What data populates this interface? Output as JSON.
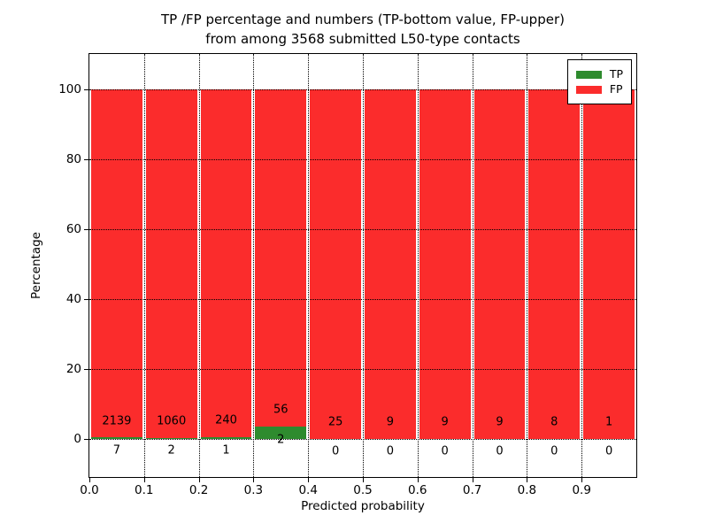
{
  "title": {
    "line1": "TP /FP percentage and numbers (TP-bottom value, FP-upper)",
    "line2": "from among 3568 submitted L50-type contacts"
  },
  "axes": {
    "xlabel": "Predicted probability",
    "ylabel": "Percentage"
  },
  "legend": {
    "items": [
      {
        "label": "TP",
        "color": "#2e8b2e"
      },
      {
        "label": "FP",
        "color": "#fb2c2c"
      }
    ]
  },
  "chart_data": {
    "type": "bar",
    "stacked": true,
    "normalized_to_percent_per_bin": true,
    "title": "TP /FP percentage and numbers (TP-bottom value, FP-upper) from among 3568 submitted L50-type contacts",
    "xlabel": "Predicted probability",
    "ylabel": "Percentage",
    "total_submitted_contacts": 3568,
    "bin_edges": [
      0.0,
      0.1,
      0.2,
      0.3,
      0.4,
      0.5,
      0.6,
      0.7,
      0.8,
      0.9,
      1.0
    ],
    "x_tick_labels": [
      "0.0",
      "0.1",
      "0.2",
      "0.3",
      "0.4",
      "0.5",
      "0.6",
      "0.7",
      "0.8",
      "0.9"
    ],
    "y_ticks": [
      0,
      20,
      40,
      60,
      80,
      100
    ],
    "y_tick_labels": [
      "0",
      "20",
      "40",
      "60",
      "80",
      "100"
    ],
    "xlim": [
      0,
      1
    ],
    "ylim": [
      -11,
      110
    ],
    "grid": "dotted both axes",
    "legend_position": "upper right",
    "series": [
      {
        "name": "TP",
        "color": "#2e8b2e",
        "counts": [
          7,
          2,
          1,
          2,
          0,
          0,
          0,
          0,
          0,
          0
        ],
        "percent": [
          0.33,
          0.19,
          0.41,
          3.45,
          0,
          0,
          0,
          0,
          0,
          0
        ]
      },
      {
        "name": "FP",
        "color": "#fb2c2c",
        "counts": [
          2139,
          1060,
          240,
          56,
          25,
          9,
          9,
          9,
          8,
          1
        ],
        "percent": [
          99.67,
          99.81,
          99.59,
          96.55,
          100,
          100,
          100,
          100,
          100,
          100
        ]
      }
    ]
  }
}
